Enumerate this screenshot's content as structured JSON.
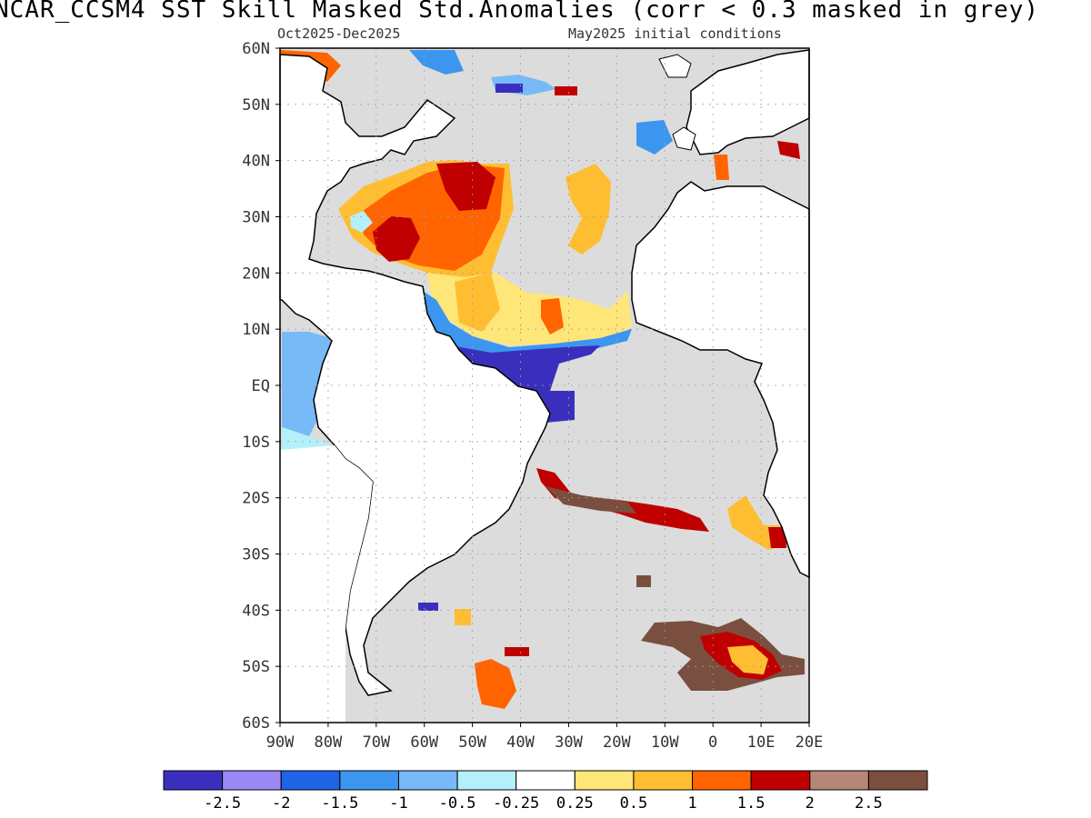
{
  "title": "NCAR_CCSM4  SST Skill Masked Std.Anomalies (corr < 0.3 masked in grey)",
  "subtitle_left": "Oct2025-Dec2025",
  "subtitle_right": "May2025 initial conditions",
  "map": {
    "lon_range": [
      -90,
      20
    ],
    "lat_range": [
      -60,
      60
    ],
    "lat_labels": [
      "60N",
      "50N",
      "40N",
      "30N",
      "20N",
      "10N",
      "EQ",
      "10S",
      "20S",
      "30S",
      "40S",
      "50S",
      "60S"
    ],
    "lon_labels": [
      "90W",
      "80W",
      "70W",
      "60W",
      "50W",
      "40W",
      "30W",
      "20W",
      "10W",
      "0",
      "10E",
      "20E"
    ],
    "mask_color": "#dcdcdc",
    "land_color": "#ffffff",
    "coast_color": "#000000"
  },
  "colorbar": {
    "colors": [
      "#3a2fbd",
      "#9b87f5",
      "#1e64e6",
      "#3c96f0",
      "#78b9f7",
      "#b4f0fa",
      "#ffffff",
      "#ffe678",
      "#ffbe32",
      "#ff6400",
      "#c00000",
      "#b48778",
      "#7a4f40"
    ],
    "labels": [
      "-2.5",
      "-2",
      "-1.5",
      "-1",
      "-0.5",
      "-0.25",
      "0.25",
      "0.5",
      "1",
      "1.5",
      "2",
      "2.5"
    ]
  }
}
